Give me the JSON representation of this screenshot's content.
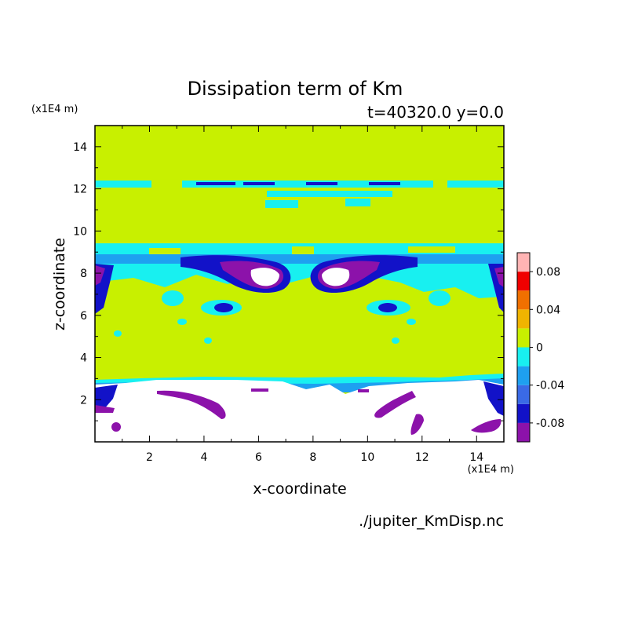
{
  "chart_data": {
    "type": "heatmap",
    "title": "Dissipation term of Km",
    "subtitle": "t=40320.0 y=0.0",
    "xlabel": "x-coordinate",
    "ylabel": "z-coordinate",
    "x_unit": "(x1E4 m)",
    "z_unit": "(x1E4 m)",
    "xlim": [
      0,
      15
    ],
    "ylim": [
      0,
      15
    ],
    "xticks": [
      "2",
      "4",
      "6",
      "8",
      "10",
      "12",
      "14"
    ],
    "yticks": [
      "2",
      "4",
      "6",
      "8",
      "10",
      "12",
      "14"
    ],
    "footer": "./jupiter_KmDisp.nc",
    "colorbar": {
      "levels": [
        -0.1,
        -0.08,
        -0.06,
        -0.04,
        -0.02,
        0,
        0.02,
        0.04,
        0.06,
        0.08,
        0.1
      ],
      "colors": [
        "#8c12aa",
        "#1212c8",
        "#3a6ae6",
        "#1ea0f0",
        "#18f0f0",
        "#c8f000",
        "#f0b400",
        "#f07000",
        "#f00000",
        "#ffb4b4"
      ],
      "tick_labels": [
        "0.08",
        "0.04",
        "0",
        "-0.04",
        "-0.08"
      ],
      "tick_values": [
        0.08,
        0.04,
        0,
        -0.04,
        -0.08
      ]
    },
    "regions": [
      {
        "name": "background",
        "value": 0,
        "x": [
          0,
          15
        ],
        "z": [
          3,
          15
        ]
      },
      {
        "name": "lower-undefined",
        "value": null,
        "x": [
          0,
          15
        ],
        "z": [
          0,
          3
        ]
      },
      {
        "name": "band-12",
        "value": -0.01,
        "x": [
          0,
          15
        ],
        "z": [
          12.1,
          12.4
        ]
      },
      {
        "name": "band-8-9",
        "value": -0.01,
        "x": [
          0,
          15
        ],
        "z": [
          8.4,
          9.3
        ]
      },
      {
        "name": "vortex-left",
        "value": -0.09,
        "x": [
          5,
          7
        ],
        "z": [
          7.6,
          8.6
        ]
      },
      {
        "name": "vortex-right",
        "value": -0.09,
        "x": [
          8.3,
          10.3
        ],
        "z": [
          7.6,
          8.6
        ]
      },
      {
        "name": "surface-layer",
        "value": -0.02,
        "x": [
          0,
          15
        ],
        "z": [
          2.8,
          3.2
        ]
      }
    ]
  }
}
